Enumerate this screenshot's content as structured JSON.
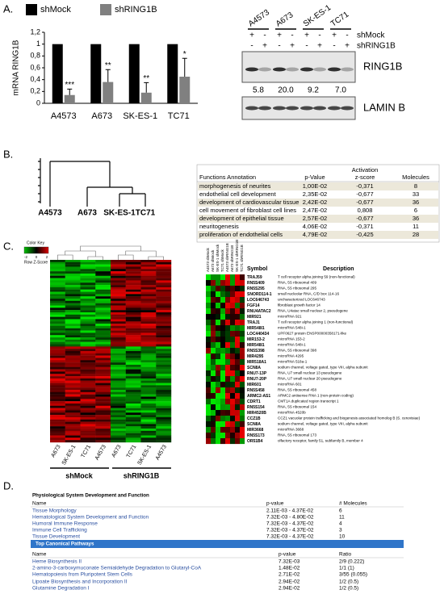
{
  "panel_labels": [
    "A.",
    "B.",
    "C.",
    "D."
  ],
  "chart_data": {
    "type": "bar",
    "ylabel": "mRNA RING1B",
    "categories": [
      "A4573",
      "A673",
      "SK-ES-1",
      "TC71"
    ],
    "series": [
      {
        "name": "shMock",
        "color": "#000000",
        "values": [
          1,
          1,
          1,
          1
        ]
      },
      {
        "name": "shRING1B",
        "color": "#808080",
        "values": [
          0.14,
          0.36,
          0.18,
          0.45
        ],
        "errors": [
          0.1,
          0.21,
          0.17,
          0.31
        ],
        "annotations": [
          "***",
          "**",
          "**",
          "*"
        ]
      }
    ],
    "ylim": [
      0,
      1.2
    ],
    "yticks": [
      0,
      {
        "value": 0.2,
        "label": "0,2"
      },
      {
        "value": 0.4,
        "label": "0,4"
      },
      {
        "value": 0.6,
        "label": "0,6"
      },
      {
        "value": 0.8,
        "label": "0,8"
      },
      1,
      {
        "value": 1.2,
        "label": "1,2"
      }
    ],
    "grid": false
  },
  "blot": {
    "cell_lines": [
      "A4573",
      "A673",
      "SK-ES-1",
      "TC71"
    ],
    "rows": [
      {
        "name": "shMock",
        "signs": [
          "+",
          "-",
          "+",
          "-",
          "+",
          "-",
          "+",
          "-"
        ]
      },
      {
        "name": "shRING1B",
        "signs": [
          "-",
          "+",
          "-",
          "+",
          "-",
          "+",
          "-",
          "+"
        ]
      }
    ],
    "quantification": [
      "5.8",
      "20.0",
      "9.2",
      "7.0"
    ],
    "bands": [
      "RING1B",
      "LAMIN B"
    ]
  },
  "dendrogram": {
    "labels": [
      "A4573",
      "A673",
      "SK-ES-1",
      "TC71"
    ]
  },
  "table_b": {
    "header": [
      "Functions Annotation",
      "p-Value",
      [
        "Activation",
        "z-score"
      ],
      "Molecules"
    ],
    "rows": [
      [
        "morphogenesis of neurites",
        "1,00E-02",
        "-0,371",
        8
      ],
      [
        "endothelial cell development",
        "2,35E-02",
        "-0,677",
        33
      ],
      [
        "development of cardiovascular tissue",
        "2,42E-02",
        "-0,677",
        36
      ],
      [
        "cell movement of fibroblast cell lines",
        "2,47E-02",
        "0,808",
        6
      ],
      [
        "development of epithelial tissue",
        "2,57E-02",
        "-0,677",
        36
      ],
      [
        "neuritogenesis",
        "4,06E-02",
        "-0,371",
        11
      ],
      [
        "proliferation of endothelial cells",
        "4,79E-02",
        "-0,425",
        28
      ]
    ]
  },
  "heatmap": {
    "color_key": {
      "title": "Color Key",
      "ticks": [
        -2,
        0,
        2
      ],
      "label": "Row Z-Score"
    },
    "columns": [
      "A673",
      "SK-ES-1",
      "TC71",
      "A4573",
      "A673",
      "TC71",
      "SK-ES-1",
      "A4573"
    ],
    "groups": [
      "shMock",
      "shRING1B"
    ]
  },
  "gene_heatmap": {
    "columns": [
      "A4573 shMock",
      "A673 shMock",
      "SK-ES-1 shMock",
      "TC71 shMock",
      "A4573 shRING1B",
      "A673 shRING1B",
      "SK-ES-1 shRING1B",
      "TC71 shRING1B"
    ],
    "header": [
      "Symbol",
      "Description"
    ],
    "rows": [
      [
        "TRAJ59",
        "T cell receptor alpha joining 59 (non-functional)"
      ],
      [
        "RN5S409",
        "RNA, 5S ribosomal 409"
      ],
      [
        "RN5S295",
        "RNA, 5S ribosomal 295"
      ],
      [
        "SNORD114-1",
        "small nucleolar RNA, C/D box 114-16"
      ],
      [
        "LOC646743",
        "uncharacterized LOC646743"
      ],
      [
        "FGF14",
        "fibroblast growth factor 14"
      ],
      [
        "RNU4ATAC2",
        "RNA, U4atac small nuclear 2, pseudogene"
      ],
      [
        "MIR921",
        "microRNA 921"
      ],
      [
        "TRAJ1",
        "T cell receptor alpha joining 1 (non-functional)"
      ],
      [
        "MIR548I1",
        "microRNA 548i-1"
      ],
      [
        "LOC440434",
        "UPF0627 protein ENSP00000358171-like"
      ],
      [
        "MIR153-2",
        "microRNA 153-2"
      ],
      [
        "MIR548I1",
        "microRNA 548i-1"
      ],
      [
        "RN5S398",
        "RNA, 5S ribosomal 398"
      ],
      [
        "MIR4295",
        "microRNA 4295"
      ],
      [
        "MIR518A1",
        "microRNA 518a-1"
      ],
      [
        "SCN8A",
        "sodium channel, voltage gated, type VIII, alpha subunit"
      ],
      [
        "RNU7-13P",
        "RNA, U7 small nuclear 13 pseudogene"
      ],
      [
        "RNU7-20P",
        "RNA, U7 small nuclear 20 pseudogene"
      ],
      [
        "MIR601",
        "microRNA 601"
      ],
      [
        "RN5S458",
        "RNA, 5S ribosomal 458"
      ],
      [
        "ARMC2-AS1",
        "ARMC2 antisense RNA 1 (non-protein coding)"
      ],
      [
        "CDRT1",
        "CMT1A duplicated region transcript 1"
      ],
      [
        "RN5S154",
        "RNA, 5S ribosomal 154"
      ],
      [
        "MIR4520B",
        "microRNA 4520b"
      ],
      [
        "CCZ1B",
        "CCZ1 vacuolar protein trafficking and biogenesis associated homolog B (S. cerevisiae)"
      ],
      [
        "SCN8A",
        "sodium channel, voltage gated, type VIII, alpha subunit"
      ],
      [
        "MIR3668",
        "microRNA 3668"
      ],
      [
        "RN5S173",
        "RNA, 5S ribosomal 173"
      ],
      [
        "OR51B4",
        "olfactory receptor, family 51, subfamily B, member 4"
      ]
    ]
  },
  "panel_d": {
    "physiological": {
      "title": "Physiological System Development and Function",
      "header": [
        "Name",
        "p-value",
        "# Molecules"
      ],
      "rows": [
        [
          "Tissue Morphology",
          "2.11E-03 - 4.37E-02",
          6
        ],
        [
          "Hematological System Development and Function",
          "7.32E-03 - 4.80E-02",
          11
        ],
        [
          "Humoral Immune Response",
          "7.32E-03 - 4.37E-02",
          4
        ],
        [
          "Immune Cell Trafficking",
          "7.32E-03 - 4.37E-02",
          3
        ],
        [
          "Tissue Development",
          "7.32E-03 - 4.37E-02",
          10
        ]
      ]
    },
    "pathways": {
      "title": "Top Canonical Pathways",
      "header": [
        "Name",
        "p-value",
        "Ratio"
      ],
      "rows": [
        [
          "Heme Biosynthesis II",
          "7.32E-03",
          "2/9 (0.222)"
        ],
        [
          "2-amino-3-carboxymuconate Semialdehyde Degradation to Glutaryl-CoA",
          "1.48E-02",
          "1/1 (1)"
        ],
        [
          "Hematopoiesis from Pluripotent Stem Cells",
          "2.71E-02",
          "3/55 (0.055)"
        ],
        [
          "Lipoate Biosynthesis and Incorporation II",
          "2.94E-02",
          "1/2 (0.5)"
        ],
        [
          "Glutamine Degradation I",
          "2.94E-02",
          "1/2 (0.5)"
        ]
      ]
    }
  }
}
